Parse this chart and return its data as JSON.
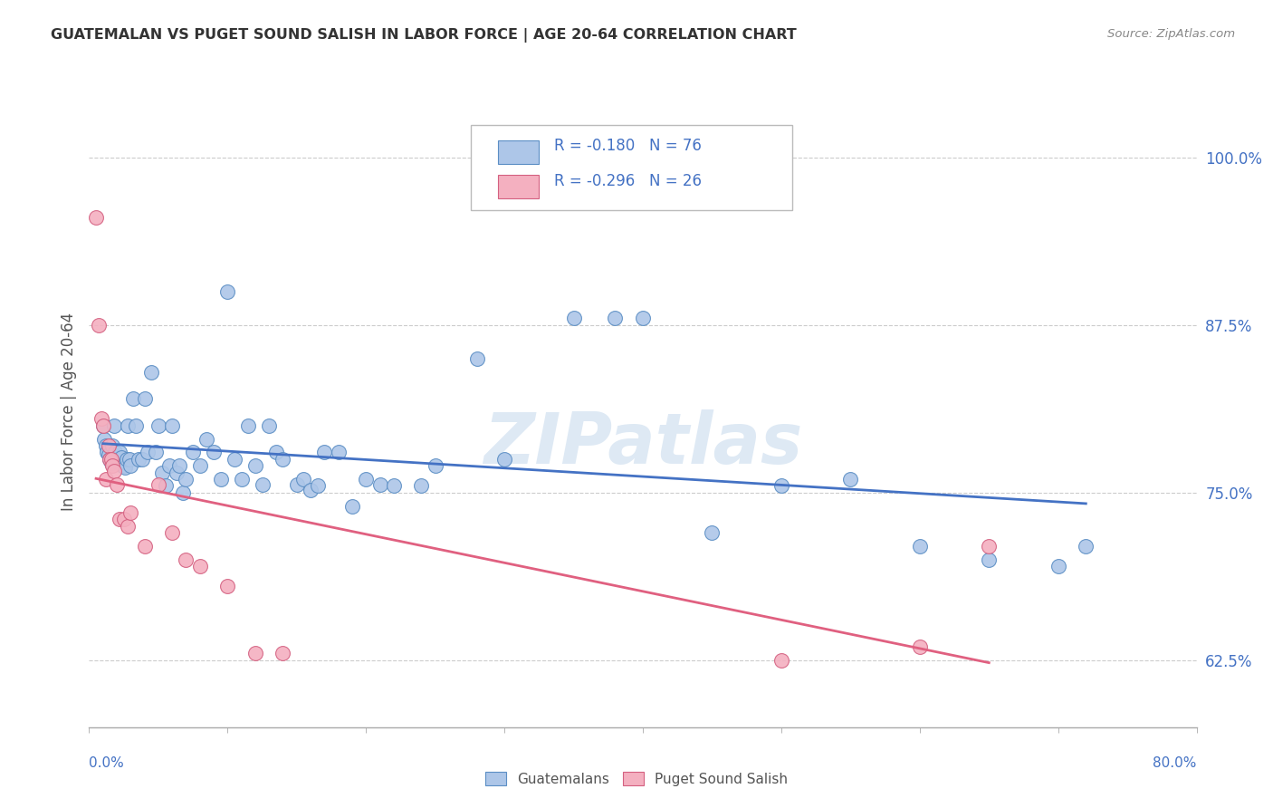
{
  "title": "GUATEMALAN VS PUGET SOUND SALISH IN LABOR FORCE | AGE 20-64 CORRELATION CHART",
  "source": "Source: ZipAtlas.com",
  "ylabel": "In Labor Force | Age 20-64",
  "legend_label1": "Guatemalans",
  "legend_label2": "Puget Sound Salish",
  "r1": "-0.180",
  "n1": "76",
  "r2": "-0.296",
  "n2": "26",
  "ytick_vals": [
    0.625,
    0.75,
    0.875,
    1.0
  ],
  "ytick_labels": [
    "62.5%",
    "75.0%",
    "87.5%",
    "100.0%"
  ],
  "xlim": [
    0.0,
    0.8
  ],
  "ylim": [
    0.575,
    1.045
  ],
  "blue_dot_color": "#adc6e8",
  "blue_edge_color": "#5b8ec4",
  "pink_dot_color": "#f4b0c0",
  "pink_edge_color": "#d46080",
  "blue_line_color": "#4472c4",
  "pink_line_color": "#e06080",
  "watermark_color": "#d0e0f0",
  "blue_x": [
    0.01,
    0.011,
    0.012,
    0.013,
    0.014,
    0.015,
    0.016,
    0.017,
    0.018,
    0.019,
    0.02,
    0.021,
    0.022,
    0.023,
    0.024,
    0.025,
    0.026,
    0.027,
    0.028,
    0.029,
    0.03,
    0.032,
    0.034,
    0.036,
    0.038,
    0.04,
    0.042,
    0.045,
    0.048,
    0.05,
    0.053,
    0.055,
    0.058,
    0.06,
    0.063,
    0.065,
    0.068,
    0.07,
    0.075,
    0.08,
    0.085,
    0.09,
    0.095,
    0.1,
    0.105,
    0.11,
    0.115,
    0.12,
    0.125,
    0.13,
    0.135,
    0.14,
    0.15,
    0.155,
    0.16,
    0.165,
    0.17,
    0.18,
    0.19,
    0.2,
    0.21,
    0.22,
    0.24,
    0.25,
    0.28,
    0.3,
    0.35,
    0.38,
    0.4,
    0.45,
    0.5,
    0.55,
    0.6,
    0.65,
    0.7,
    0.72
  ],
  "blue_y": [
    0.8,
    0.79,
    0.785,
    0.78,
    0.778,
    0.775,
    0.772,
    0.785,
    0.8,
    0.78,
    0.775,
    0.772,
    0.78,
    0.776,
    0.77,
    0.77,
    0.769,
    0.775,
    0.8,
    0.775,
    0.77,
    0.82,
    0.8,
    0.775,
    0.775,
    0.82,
    0.78,
    0.84,
    0.78,
    0.8,
    0.765,
    0.755,
    0.77,
    0.8,
    0.765,
    0.77,
    0.75,
    0.76,
    0.78,
    0.77,
    0.79,
    0.78,
    0.76,
    0.9,
    0.775,
    0.76,
    0.8,
    0.77,
    0.756,
    0.8,
    0.78,
    0.775,
    0.756,
    0.76,
    0.752,
    0.755,
    0.78,
    0.78,
    0.74,
    0.76,
    0.756,
    0.755,
    0.755,
    0.77,
    0.85,
    0.775,
    0.88,
    0.88,
    0.88,
    0.72,
    0.755,
    0.76,
    0.71,
    0.7,
    0.695,
    0.71
  ],
  "pink_x": [
    0.005,
    0.007,
    0.009,
    0.01,
    0.012,
    0.014,
    0.015,
    0.016,
    0.017,
    0.018,
    0.02,
    0.022,
    0.025,
    0.028,
    0.03,
    0.04,
    0.05,
    0.06,
    0.07,
    0.08,
    0.1,
    0.12,
    0.14,
    0.5,
    0.6,
    0.65
  ],
  "pink_y": [
    0.955,
    0.875,
    0.805,
    0.8,
    0.76,
    0.785,
    0.775,
    0.775,
    0.77,
    0.766,
    0.756,
    0.73,
    0.73,
    0.725,
    0.735,
    0.71,
    0.756,
    0.72,
    0.7,
    0.695,
    0.68,
    0.63,
    0.63,
    0.625,
    0.635,
    0.71
  ]
}
